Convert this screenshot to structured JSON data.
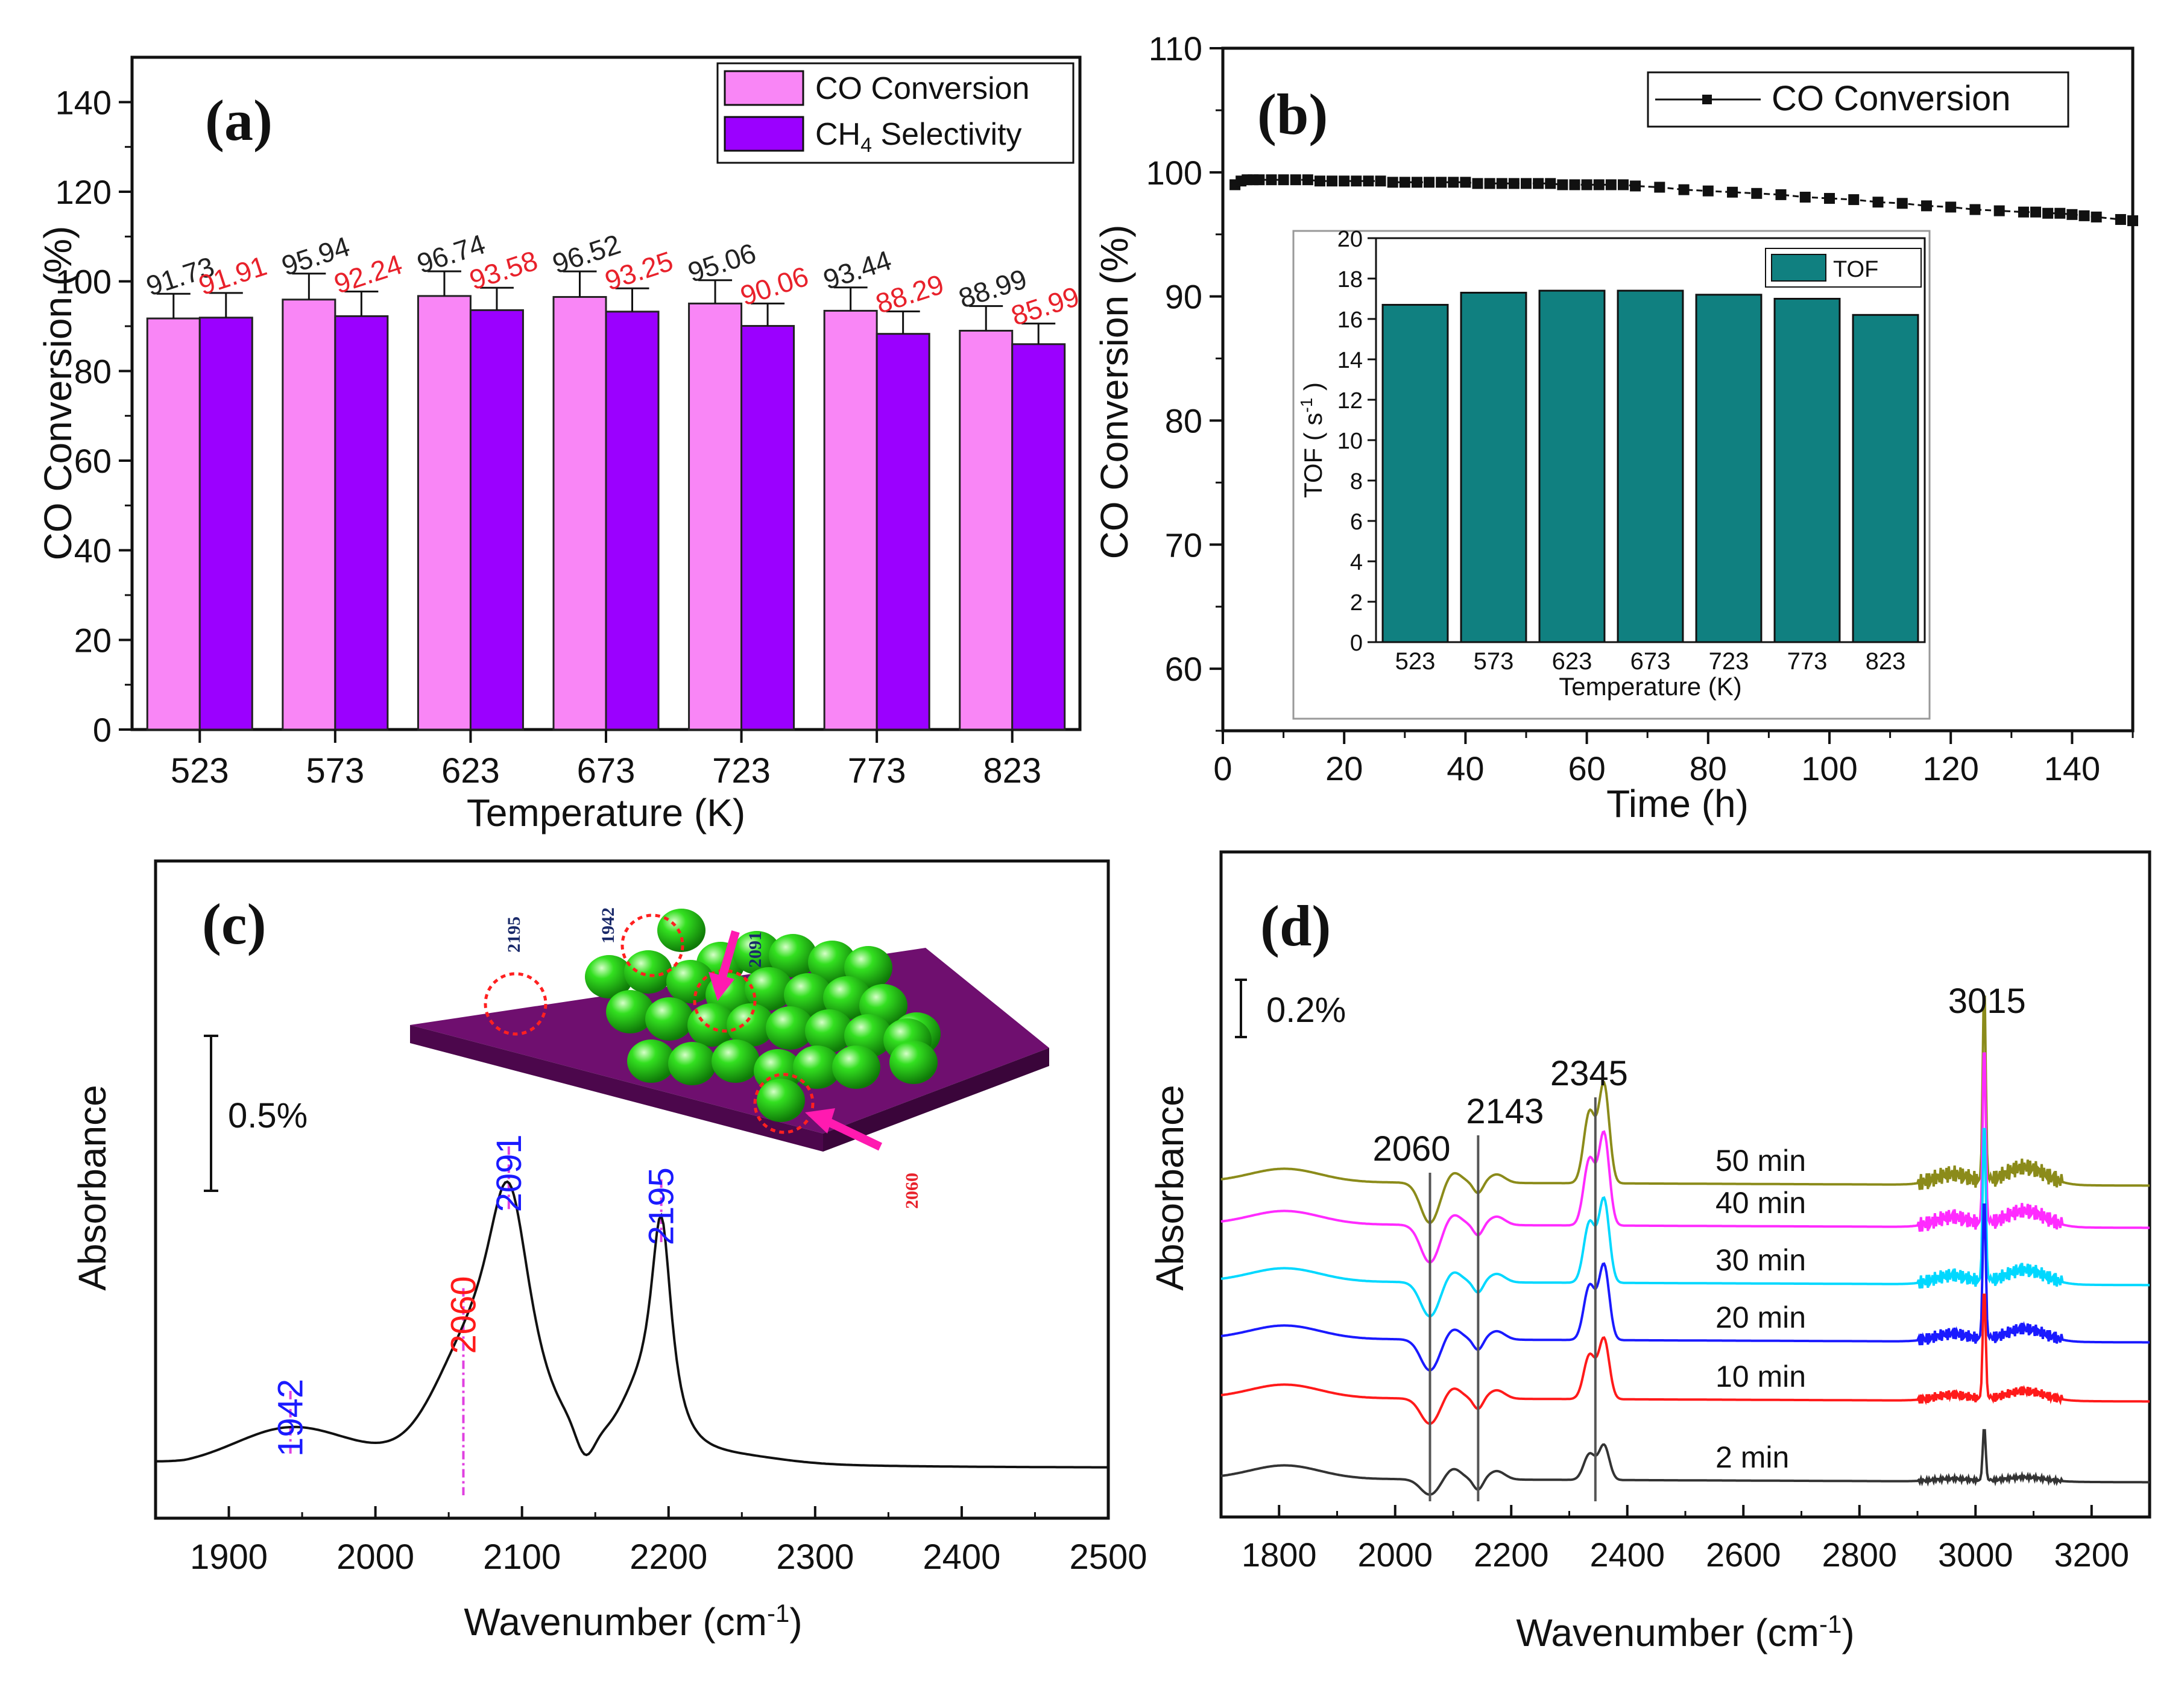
{
  "chart_data": [
    {
      "id": "a",
      "type": "bar",
      "panel_label": "(a)",
      "xlabel": "Temperature (K)",
      "ylabel": "CO Conversion (%)",
      "ylim": [
        0,
        150
      ],
      "yticks": [
        0,
        20,
        40,
        60,
        80,
        100,
        120,
        140
      ],
      "categories": [
        "523",
        "573",
        "623",
        "673",
        "723",
        "773",
        "823"
      ],
      "series": [
        {
          "name": "CO Conversion",
          "color": "#f986f6",
          "label_color": "#222222",
          "values": [
            91.73,
            95.94,
            96.74,
            96.52,
            95.06,
            93.44,
            88.99
          ],
          "labels": [
            "91.73",
            "95.94",
            "96.74",
            "96.52",
            "95.06",
            "93.44",
            "88.99"
          ],
          "errors": [
            5.5,
            5.8,
            5.5,
            5.7,
            5.2,
            5.2,
            5.5
          ]
        },
        {
          "name": "CH4 Selectivity",
          "legend_main": "CH",
          "legend_sub": "4",
          "legend_tail": " Selectivity",
          "color": "#9b00ff",
          "label_color": "#e8212b",
          "values": [
            91.91,
            92.24,
            93.58,
            93.25,
            90.06,
            88.29,
            85.99
          ],
          "labels": [
            "91.91",
            "92.24",
            "93.58",
            "93.25",
            "90.06",
            "88.29",
            "85.99"
          ],
          "errors": [
            5.5,
            5.5,
            5.0,
            5.2,
            5.0,
            5.0,
            4.6
          ]
        }
      ],
      "legend_position": "top-right"
    },
    {
      "id": "b",
      "type": "line",
      "panel_label": "(b)",
      "xlabel": "Time (h)",
      "ylabel": "CO Conversion (%)",
      "xlim": [
        0,
        150
      ],
      "ylim": [
        55,
        110
      ],
      "xticks": [
        0,
        20,
        40,
        60,
        80,
        100,
        120,
        140
      ],
      "yticks": [
        60,
        70,
        80,
        90,
        100,
        110
      ],
      "legend_position": "top-right",
      "series": [
        {
          "name": "CO Conversion",
          "color": "#111111",
          "x": [
            2,
            3,
            4,
            5,
            6,
            8,
            10,
            12,
            14,
            16,
            18,
            20,
            22,
            24,
            26,
            28,
            30,
            32,
            34,
            36,
            38,
            40,
            42,
            44,
            46,
            48,
            50,
            52,
            54,
            56,
            58,
            60,
            62,
            64,
            66,
            68,
            72,
            76,
            80,
            84,
            88,
            92,
            96,
            100,
            104,
            108,
            112,
            116,
            120,
            124,
            128,
            132,
            134,
            136,
            138,
            140,
            142,
            144,
            148,
            150
          ],
          "y": [
            99.0,
            99.3,
            99.4,
            99.4,
            99.4,
            99.4,
            99.4,
            99.4,
            99.4,
            99.3,
            99.3,
            99.3,
            99.3,
            99.3,
            99.3,
            99.2,
            99.2,
            99.2,
            99.2,
            99.2,
            99.2,
            99.2,
            99.1,
            99.1,
            99.1,
            99.1,
            99.1,
            99.1,
            99.1,
            99.0,
            99.0,
            99.0,
            99.0,
            99.0,
            99.0,
            98.9,
            98.8,
            98.6,
            98.5,
            98.4,
            98.3,
            98.2,
            98.0,
            97.9,
            97.8,
            97.6,
            97.5,
            97.3,
            97.2,
            97.0,
            96.9,
            96.8,
            96.8,
            96.7,
            96.7,
            96.6,
            96.5,
            96.4,
            96.2,
            96.1
          ]
        }
      ],
      "inset": {
        "type": "bar",
        "xlabel": "Temperature (K)",
        "ylabel_main": "TOF  ( s",
        "ylabel_sup": "-1",
        "ylabel_tail": " )",
        "ylim": [
          0,
          20
        ],
        "yticks": [
          0,
          2,
          4,
          6,
          8,
          10,
          12,
          14,
          16,
          18,
          20
        ],
        "categories": [
          "523",
          "573",
          "623",
          "673",
          "723",
          "773",
          "823"
        ],
        "series": [
          {
            "name": "TOF",
            "color": "#108080",
            "values": [
              16.7,
              17.3,
              17.4,
              17.4,
              17.2,
              17.0,
              16.2
            ]
          }
        ],
        "legend_position": "top-right"
      }
    },
    {
      "id": "c",
      "type": "line",
      "panel_label": "(c)",
      "xlabel_main": "Wavenumber (cm",
      "xlabel_sup": "-1",
      "xlabel_tail": ")",
      "ylabel": "Absorbance",
      "xlim": [
        1850,
        2500
      ],
      "xticks": [
        1900,
        2000,
        2100,
        2200,
        2300,
        2400,
        2500
      ],
      "scale_bar": "0.5%",
      "peaks": [
        {
          "label": "1942",
          "x": 1942,
          "color": "#1a1aff"
        },
        {
          "label": "2060",
          "x": 2060,
          "color": "#ff1a1a"
        },
        {
          "label": "2091",
          "x": 2091,
          "color": "#1a1aff"
        },
        {
          "label": "2195",
          "x": 2195,
          "color": "#1a1aff"
        }
      ],
      "inset_labels": [
        {
          "label": "2195",
          "color": "#1a2a6a"
        },
        {
          "label": "1942",
          "color": "#1a2a6a"
        },
        {
          "label": "2091",
          "color": "#1a2a6a"
        },
        {
          "label": "2060",
          "color": "#e8212b"
        }
      ],
      "series": [
        {
          "name": "spectrum",
          "color": "#111111"
        }
      ]
    },
    {
      "id": "d",
      "type": "line",
      "panel_label": "(d)",
      "xlabel_main": "Wavenumber (cm",
      "xlabel_sup": "-1",
      "xlabel_tail": ")",
      "ylabel": "Absorbance",
      "xlim": [
        1700,
        3300
      ],
      "xticks": [
        1800,
        2000,
        2200,
        2400,
        2600,
        2800,
        3000,
        3200
      ],
      "scale_bar": "0.2%",
      "peaks": [
        {
          "label": "2060",
          "x": 2060
        },
        {
          "label": "2143",
          "x": 2143
        },
        {
          "label": "2345",
          "x": 2345
        },
        {
          "label": "3015",
          "x": 3015
        }
      ],
      "series": [
        {
          "name": "50 min",
          "color": "#8b8b1a"
        },
        {
          "name": "40 min",
          "color": "#ff2bff"
        },
        {
          "name": "30 min",
          "color": "#00d8ff"
        },
        {
          "name": "20 min",
          "color": "#1a1aff"
        },
        {
          "name": "10 min",
          "color": "#ff1a1a"
        },
        {
          "name": "2 min",
          "color": "#333333"
        }
      ]
    }
  ]
}
